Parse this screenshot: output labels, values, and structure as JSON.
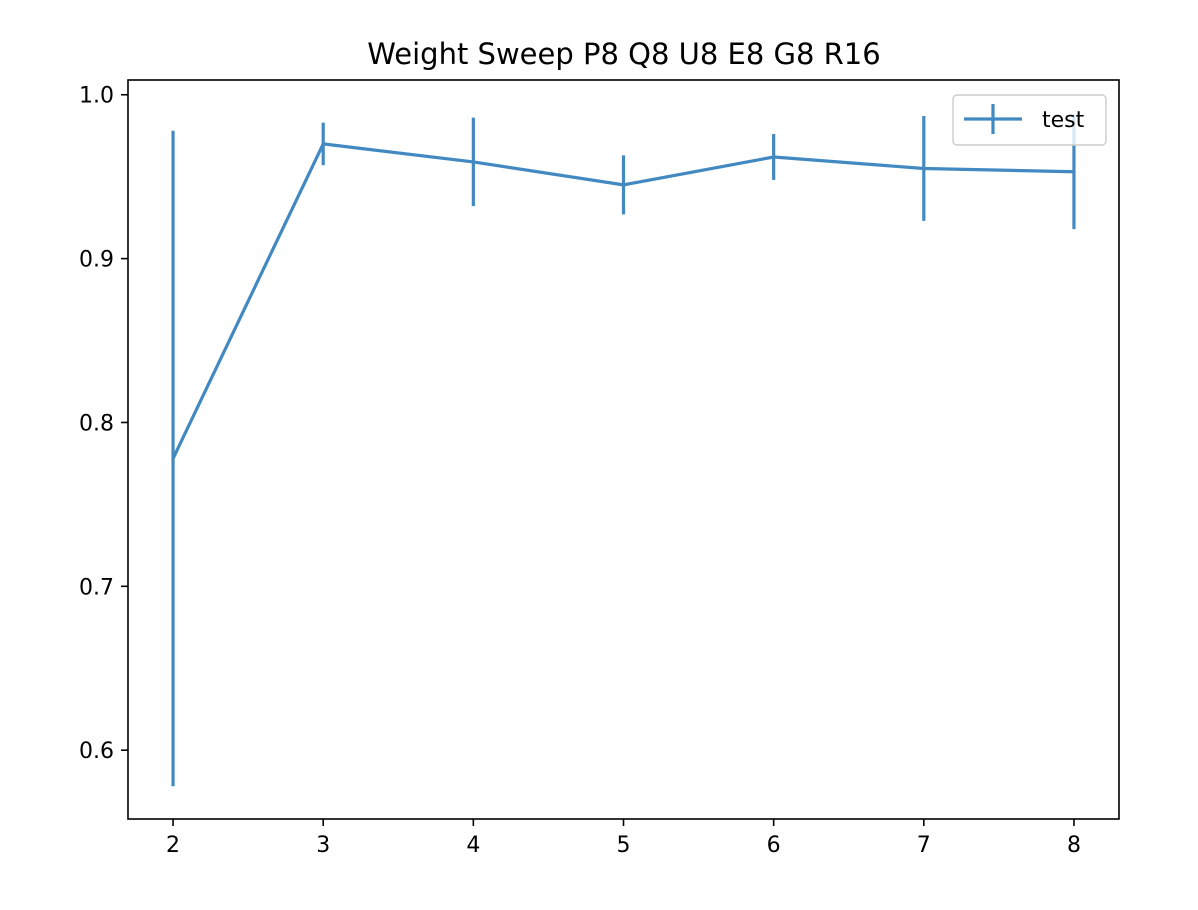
{
  "chart_data": {
    "type": "line",
    "title": "Weight Sweep P8 Q8 U8 E8 G8 R16",
    "xlabel": "",
    "ylabel": "",
    "xlim": [
      1.7,
      8.3
    ],
    "ylim": [
      0.558,
      1.009
    ],
    "xticks": [
      2,
      3,
      4,
      5,
      6,
      7,
      8
    ],
    "yticks": [
      0.6,
      0.7,
      0.8,
      0.9,
      1.0
    ],
    "xtick_labels": [
      "2",
      "3",
      "4",
      "5",
      "6",
      "7",
      "8"
    ],
    "ytick_labels": [
      "0.6",
      "0.7",
      "0.8",
      "0.9",
      "1.0"
    ],
    "grid": false,
    "legend_position": "top-right",
    "series": [
      {
        "name": "test",
        "color": "#4289c1",
        "x": [
          2,
          3,
          4,
          5,
          6,
          7,
          8
        ],
        "y": [
          0.778,
          0.97,
          0.959,
          0.945,
          0.962,
          0.955,
          0.953
        ],
        "yerr": [
          0.2,
          0.013,
          0.027,
          0.018,
          0.014,
          0.032,
          0.035
        ]
      }
    ]
  }
}
